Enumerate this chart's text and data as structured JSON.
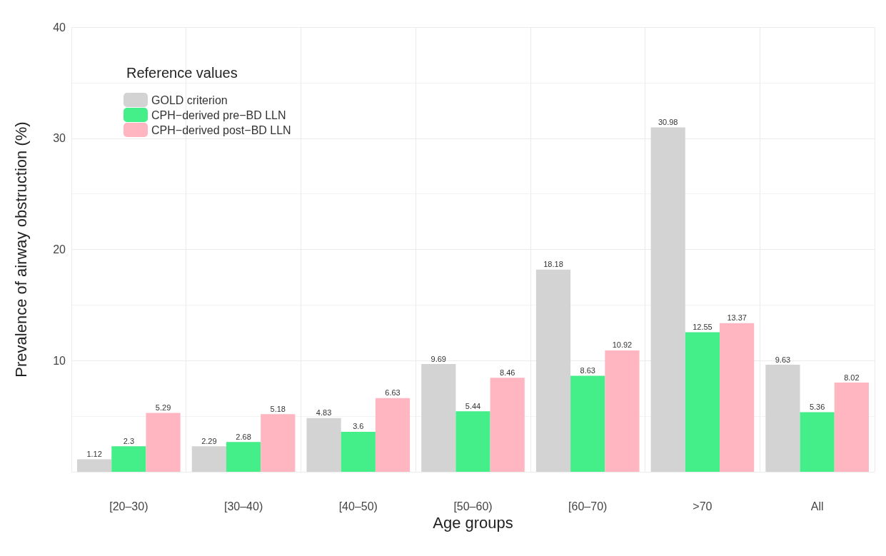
{
  "chart_data": {
    "type": "bar",
    "xlabel": "Age groups",
    "ylabel": "Prevalence of airway obstruction (%)",
    "legend_title": "Reference values",
    "categories": [
      "[20–30)",
      "[30–40)",
      "[40–50)",
      "[50–60)",
      "[60–70)",
      ">70",
      "All"
    ],
    "series": [
      {
        "name": "GOLD criterion",
        "color": "#d3d3d3",
        "values": [
          1.12,
          2.29,
          4.83,
          9.69,
          18.18,
          30.98,
          9.63
        ]
      },
      {
        "name": "CPH−derived pre−BD LLN",
        "color": "#44ee88",
        "values": [
          2.3,
          2.68,
          3.6,
          5.44,
          8.63,
          12.55,
          5.36
        ]
      },
      {
        "name": "CPH−derived post−BD LLN",
        "color": "#ffb6c1",
        "values": [
          5.29,
          5.18,
          6.63,
          8.46,
          10.92,
          13.37,
          8.02
        ]
      }
    ],
    "ylim": [
      0,
      40
    ],
    "yticks": [
      {
        "value": 0,
        "label": null
      },
      10,
      20,
      30,
      40
    ],
    "grid": true,
    "legend": "top left",
    "data_labels": true
  }
}
